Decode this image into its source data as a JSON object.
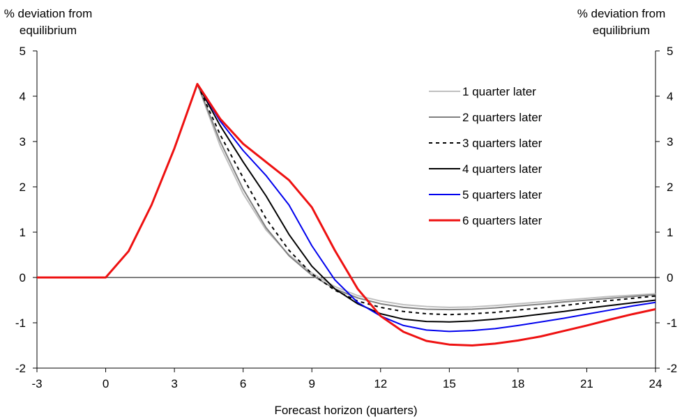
{
  "chart_data": {
    "type": "line",
    "xlabel": "Forecast horizon (quarters)",
    "ylabel_left": [
      "% deviation from",
      "equilibrium"
    ],
    "ylabel_right": [
      "% deviation from",
      "equilibrium"
    ],
    "xlim": [
      -3,
      24
    ],
    "ylim": [
      -2,
      5
    ],
    "x_ticks": [
      -3,
      0,
      3,
      6,
      9,
      12,
      15,
      18,
      21,
      24
    ],
    "y_ticks": [
      -2,
      -1,
      0,
      1,
      2,
      3,
      4,
      5
    ],
    "grid": false,
    "legend_position": "top-right",
    "series": [
      {
        "name": "1 quarter later",
        "color": "#bfbfbf",
        "style": "solid",
        "x": [
          -3,
          0,
          1,
          2,
          3,
          4,
          5,
          6,
          7,
          8,
          9,
          10,
          11,
          12,
          13,
          14,
          15,
          16,
          17,
          18,
          19,
          20,
          21,
          22,
          23,
          24
        ],
        "y": [
          0,
          0,
          0.58,
          1.6,
          2.85,
          4.27,
          2.9,
          1.85,
          1.05,
          0.5,
          0.1,
          -0.2,
          -0.4,
          -0.52,
          -0.6,
          -0.64,
          -0.66,
          -0.65,
          -0.62,
          -0.58,
          -0.54,
          -0.5,
          -0.46,
          -0.42,
          -0.39,
          -0.36
        ]
      },
      {
        "name": "2 quarters later",
        "color": "#808080",
        "style": "solid",
        "x": [
          -3,
          0,
          1,
          2,
          3,
          4,
          5,
          6,
          7,
          8,
          9,
          10,
          11,
          12,
          13,
          14,
          15,
          16,
          17,
          18,
          19,
          20,
          21,
          22,
          23,
          24
        ],
        "y": [
          0,
          0,
          0.58,
          1.6,
          2.85,
          4.27,
          3.0,
          1.95,
          1.1,
          0.48,
          0.05,
          -0.25,
          -0.45,
          -0.58,
          -0.66,
          -0.7,
          -0.71,
          -0.7,
          -0.67,
          -0.63,
          -0.59,
          -0.54,
          -0.5,
          -0.46,
          -0.42,
          -0.38
        ]
      },
      {
        "name": "3 quarters later",
        "color": "#000000",
        "style": "dashed",
        "x": [
          -3,
          0,
          1,
          2,
          3,
          4,
          5,
          6,
          7,
          8,
          9,
          10,
          11,
          12,
          13,
          14,
          15,
          16,
          17,
          18,
          19,
          20,
          21,
          22,
          23,
          24
        ],
        "y": [
          0,
          0,
          0.58,
          1.6,
          2.85,
          4.27,
          3.15,
          2.2,
          1.3,
          0.6,
          0.08,
          -0.28,
          -0.52,
          -0.66,
          -0.75,
          -0.8,
          -0.82,
          -0.8,
          -0.77,
          -0.72,
          -0.67,
          -0.62,
          -0.56,
          -0.51,
          -0.46,
          -0.41
        ]
      },
      {
        "name": "4 quarters later",
        "color": "#000000",
        "style": "solid",
        "x": [
          -3,
          0,
          1,
          2,
          3,
          4,
          5,
          6,
          7,
          8,
          9,
          10,
          11,
          12,
          13,
          14,
          15,
          16,
          17,
          18,
          19,
          20,
          21,
          22,
          23,
          24
        ],
        "y": [
          0,
          0,
          0.58,
          1.6,
          2.85,
          4.27,
          3.35,
          2.55,
          1.8,
          0.95,
          0.25,
          -0.25,
          -0.58,
          -0.8,
          -0.92,
          -0.97,
          -0.98,
          -0.96,
          -0.92,
          -0.87,
          -0.81,
          -0.75,
          -0.68,
          -0.62,
          -0.56,
          -0.5
        ]
      },
      {
        "name": "5 quarters later",
        "color": "#0000ee",
        "style": "solid",
        "x": [
          -3,
          0,
          1,
          2,
          3,
          4,
          5,
          6,
          7,
          8,
          9,
          10,
          11,
          12,
          13,
          14,
          15,
          16,
          17,
          18,
          19,
          20,
          21,
          22,
          23,
          24
        ],
        "y": [
          0,
          0,
          0.58,
          1.6,
          2.85,
          4.27,
          3.45,
          2.8,
          2.25,
          1.6,
          0.7,
          -0.05,
          -0.55,
          -0.85,
          -1.06,
          -1.16,
          -1.19,
          -1.17,
          -1.13,
          -1.06,
          -0.98,
          -0.9,
          -0.81,
          -0.72,
          -0.63,
          -0.55
        ]
      },
      {
        "name": "6 quarters later",
        "color": "#ee1111",
        "style": "solid",
        "width": 3,
        "x": [
          -3,
          0,
          1,
          2,
          3,
          4,
          5,
          6,
          7,
          8,
          9,
          10,
          11,
          12,
          13,
          14,
          15,
          16,
          17,
          18,
          19,
          20,
          21,
          22,
          23,
          24
        ],
        "y": [
          0,
          0,
          0.58,
          1.6,
          2.85,
          4.27,
          3.5,
          2.95,
          2.55,
          2.15,
          1.55,
          0.6,
          -0.25,
          -0.85,
          -1.2,
          -1.4,
          -1.48,
          -1.5,
          -1.46,
          -1.39,
          -1.3,
          -1.18,
          -1.06,
          -0.93,
          -0.81,
          -0.7
        ]
      }
    ]
  }
}
